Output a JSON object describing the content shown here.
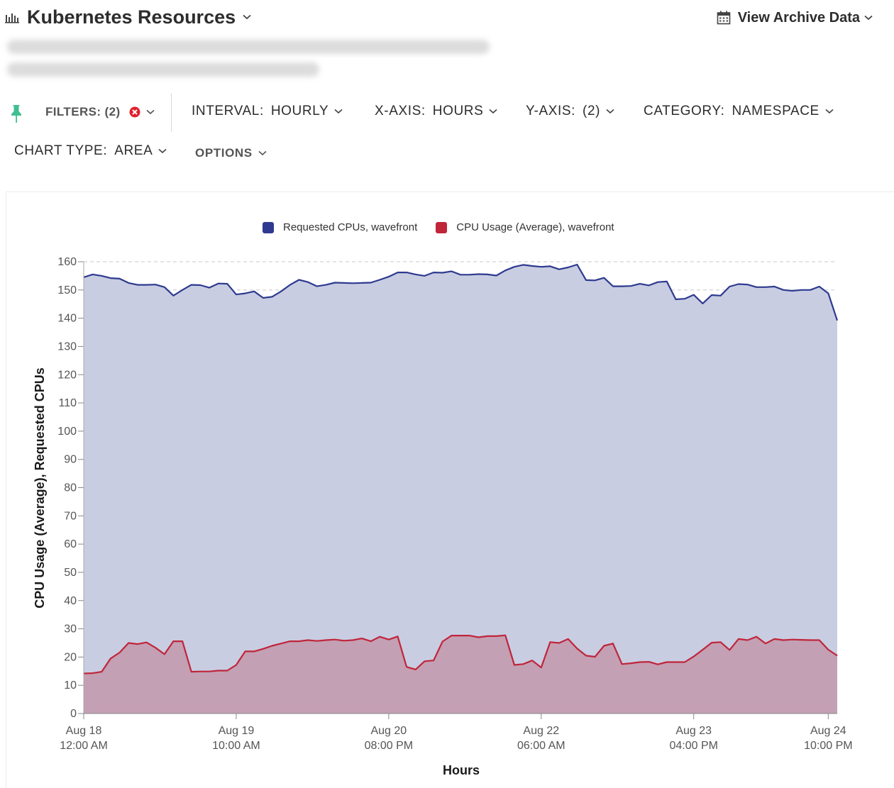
{
  "header": {
    "title": "Kubernetes Resources",
    "archive_label": "View Archive Data"
  },
  "toolbar": {
    "filters_label": "FILTERS: (2)",
    "interval_key": "INTERVAL:",
    "interval_value": "HOURLY",
    "xaxis_key": "X-AXIS:",
    "xaxis_value": "HOURS",
    "yaxis_key": "Y-AXIS:",
    "yaxis_value": "(2)",
    "category_key": "CATEGORY:",
    "category_value": "NAMESPACE",
    "charttype_key": "CHART TYPE:",
    "charttype_value": "AREA",
    "options_label": "OPTIONS"
  },
  "colors": {
    "requested_line": "#2e3a8f",
    "requested_fill": "#c9cde2",
    "usage_line": "#c0253a",
    "usage_fill": "#c49db1",
    "pin": "#3fbf8f",
    "filter_clear": "#e0202e"
  },
  "chart_data": {
    "type": "area",
    "xlabel": "Hours",
    "ylabel": "CPU Usage (Average), Requested CPUs",
    "ylim": [
      0,
      160
    ],
    "y_ticks": [
      0,
      10,
      20,
      30,
      40,
      50,
      60,
      70,
      80,
      90,
      100,
      110,
      120,
      130,
      140,
      150,
      160
    ],
    "x_ticks": [
      {
        "date": "Aug 18",
        "time": "12:00 AM",
        "index": 0
      },
      {
        "date": "Aug 19",
        "time": "10:00 AM",
        "index": 34
      },
      {
        "date": "Aug 20",
        "time": "08:00 PM",
        "index": 68
      },
      {
        "date": "Aug 22",
        "time": "06:00 AM",
        "index": 102
      },
      {
        "date": "Aug 23",
        "time": "04:00 PM",
        "index": 136
      },
      {
        "date": "Aug 24",
        "time": "10:00 PM",
        "index": 166
      }
    ],
    "grid": true,
    "legend_position": "top",
    "series": [
      {
        "name": "Requested CPUs, wavefront",
        "points": [
          [
            0,
            154.5
          ],
          [
            2,
            155.5
          ],
          [
            4,
            155
          ],
          [
            6,
            154.2
          ],
          [
            8,
            154
          ],
          [
            10,
            152.5
          ],
          [
            12,
            151.8
          ],
          [
            14,
            151.8
          ],
          [
            16,
            151.9
          ],
          [
            18,
            151
          ],
          [
            20,
            148
          ],
          [
            22,
            150
          ],
          [
            24,
            151.8
          ],
          [
            26,
            151.7
          ],
          [
            28,
            150.8
          ],
          [
            30,
            152.3
          ],
          [
            32,
            152.2
          ],
          [
            34,
            148.4
          ],
          [
            36,
            148.8
          ],
          [
            38,
            149.5
          ],
          [
            40,
            147.2
          ],
          [
            42,
            147.6
          ],
          [
            44,
            149.5
          ],
          [
            46,
            151.8
          ],
          [
            48,
            153.6
          ],
          [
            50,
            152.8
          ],
          [
            52,
            151.3
          ],
          [
            54,
            151.8
          ],
          [
            56,
            152.6
          ],
          [
            58,
            152.5
          ],
          [
            60,
            152.4
          ],
          [
            62,
            152.5
          ],
          [
            64,
            152.6
          ],
          [
            66,
            153.6
          ],
          [
            68,
            154.7
          ],
          [
            70,
            156.2
          ],
          [
            72,
            156.2
          ],
          [
            74,
            155.5
          ],
          [
            76,
            155
          ],
          [
            78,
            156.2
          ],
          [
            80,
            156.1
          ],
          [
            82,
            156.6
          ],
          [
            84,
            155.4
          ],
          [
            86,
            155.4
          ],
          [
            88,
            155.6
          ],
          [
            90,
            155.5
          ],
          [
            92,
            155.1
          ],
          [
            94,
            156.9
          ],
          [
            96,
            158.2
          ],
          [
            98,
            158.9
          ],
          [
            100,
            158.5
          ],
          [
            102,
            158.2
          ],
          [
            104,
            158.4
          ],
          [
            106,
            157.3
          ],
          [
            108,
            158
          ],
          [
            110,
            159
          ],
          [
            112,
            153.5
          ],
          [
            114,
            153.4
          ],
          [
            116,
            154.3
          ],
          [
            118,
            151.3
          ],
          [
            120,
            151.3
          ],
          [
            122,
            151.4
          ],
          [
            124,
            152.2
          ],
          [
            126,
            151.6
          ],
          [
            128,
            152.8
          ],
          [
            130,
            153
          ],
          [
            132,
            146.7
          ],
          [
            134,
            146.9
          ],
          [
            136,
            148.3
          ],
          [
            138,
            145.2
          ],
          [
            140,
            148.2
          ],
          [
            142,
            148
          ],
          [
            144,
            151.2
          ],
          [
            146,
            152.1
          ],
          [
            148,
            151.9
          ],
          [
            150,
            151
          ],
          [
            152,
            151
          ],
          [
            154,
            151.2
          ],
          [
            156,
            150
          ],
          [
            158,
            149.7
          ],
          [
            160,
            150
          ],
          [
            162,
            150
          ],
          [
            164,
            151.2
          ],
          [
            166,
            148.8
          ],
          [
            168,
            139.2
          ]
        ]
      },
      {
        "name": "CPU Usage (Average), wavefront",
        "points": [
          [
            0,
            14.2
          ],
          [
            2,
            14.3
          ],
          [
            4,
            14.8
          ],
          [
            6,
            19.5
          ],
          [
            8,
            21.6
          ],
          [
            10,
            25
          ],
          [
            12,
            24.6
          ],
          [
            14,
            25.2
          ],
          [
            16,
            23.3
          ],
          [
            18,
            21
          ],
          [
            20,
            25.6
          ],
          [
            22,
            25.6
          ],
          [
            24,
            14.8
          ],
          [
            26,
            14.9
          ],
          [
            28,
            14.9
          ],
          [
            30,
            15.2
          ],
          [
            32,
            15.2
          ],
          [
            34,
            17.2
          ],
          [
            36,
            22
          ],
          [
            38,
            22
          ],
          [
            40,
            22.9
          ],
          [
            42,
            24
          ],
          [
            44,
            24.8
          ],
          [
            46,
            25.6
          ],
          [
            48,
            25.6
          ],
          [
            50,
            26
          ],
          [
            52,
            25.7
          ],
          [
            54,
            26
          ],
          [
            56,
            26.2
          ],
          [
            58,
            25.8
          ],
          [
            60,
            26
          ],
          [
            62,
            26.6
          ],
          [
            64,
            25.6
          ],
          [
            66,
            27.2
          ],
          [
            68,
            26.2
          ],
          [
            70,
            27.3
          ],
          [
            72,
            16.5
          ],
          [
            74,
            15.6
          ],
          [
            76,
            18.5
          ],
          [
            78,
            18.8
          ],
          [
            80,
            25.5
          ],
          [
            82,
            27.6
          ],
          [
            84,
            27.6
          ],
          [
            86,
            27.6
          ],
          [
            88,
            27
          ],
          [
            90,
            27.4
          ],
          [
            92,
            27.4
          ],
          [
            94,
            27.7
          ],
          [
            96,
            17.2
          ],
          [
            98,
            17.5
          ],
          [
            100,
            18.8
          ],
          [
            102,
            16.3
          ],
          [
            104,
            25.3
          ],
          [
            106,
            25
          ],
          [
            108,
            26.4
          ],
          [
            110,
            23
          ],
          [
            112,
            20.5
          ],
          [
            114,
            20.1
          ],
          [
            116,
            24
          ],
          [
            118,
            24.8
          ],
          [
            120,
            17.5
          ],
          [
            122,
            17.8
          ],
          [
            124,
            18.2
          ],
          [
            126,
            18.3
          ],
          [
            128,
            17.4
          ],
          [
            130,
            18.2
          ],
          [
            132,
            18.2
          ],
          [
            134,
            18.2
          ],
          [
            136,
            20.2
          ],
          [
            138,
            22.6
          ],
          [
            140,
            25.1
          ],
          [
            142,
            25.3
          ],
          [
            144,
            22.5
          ],
          [
            146,
            26.4
          ],
          [
            148,
            26
          ],
          [
            150,
            27.2
          ],
          [
            152,
            24.8
          ],
          [
            154,
            26.4
          ],
          [
            156,
            26
          ],
          [
            158,
            26.2
          ],
          [
            160,
            26.1
          ],
          [
            162,
            26
          ],
          [
            164,
            26
          ],
          [
            166,
            22.6
          ],
          [
            168,
            20.5
          ]
        ]
      }
    ]
  }
}
